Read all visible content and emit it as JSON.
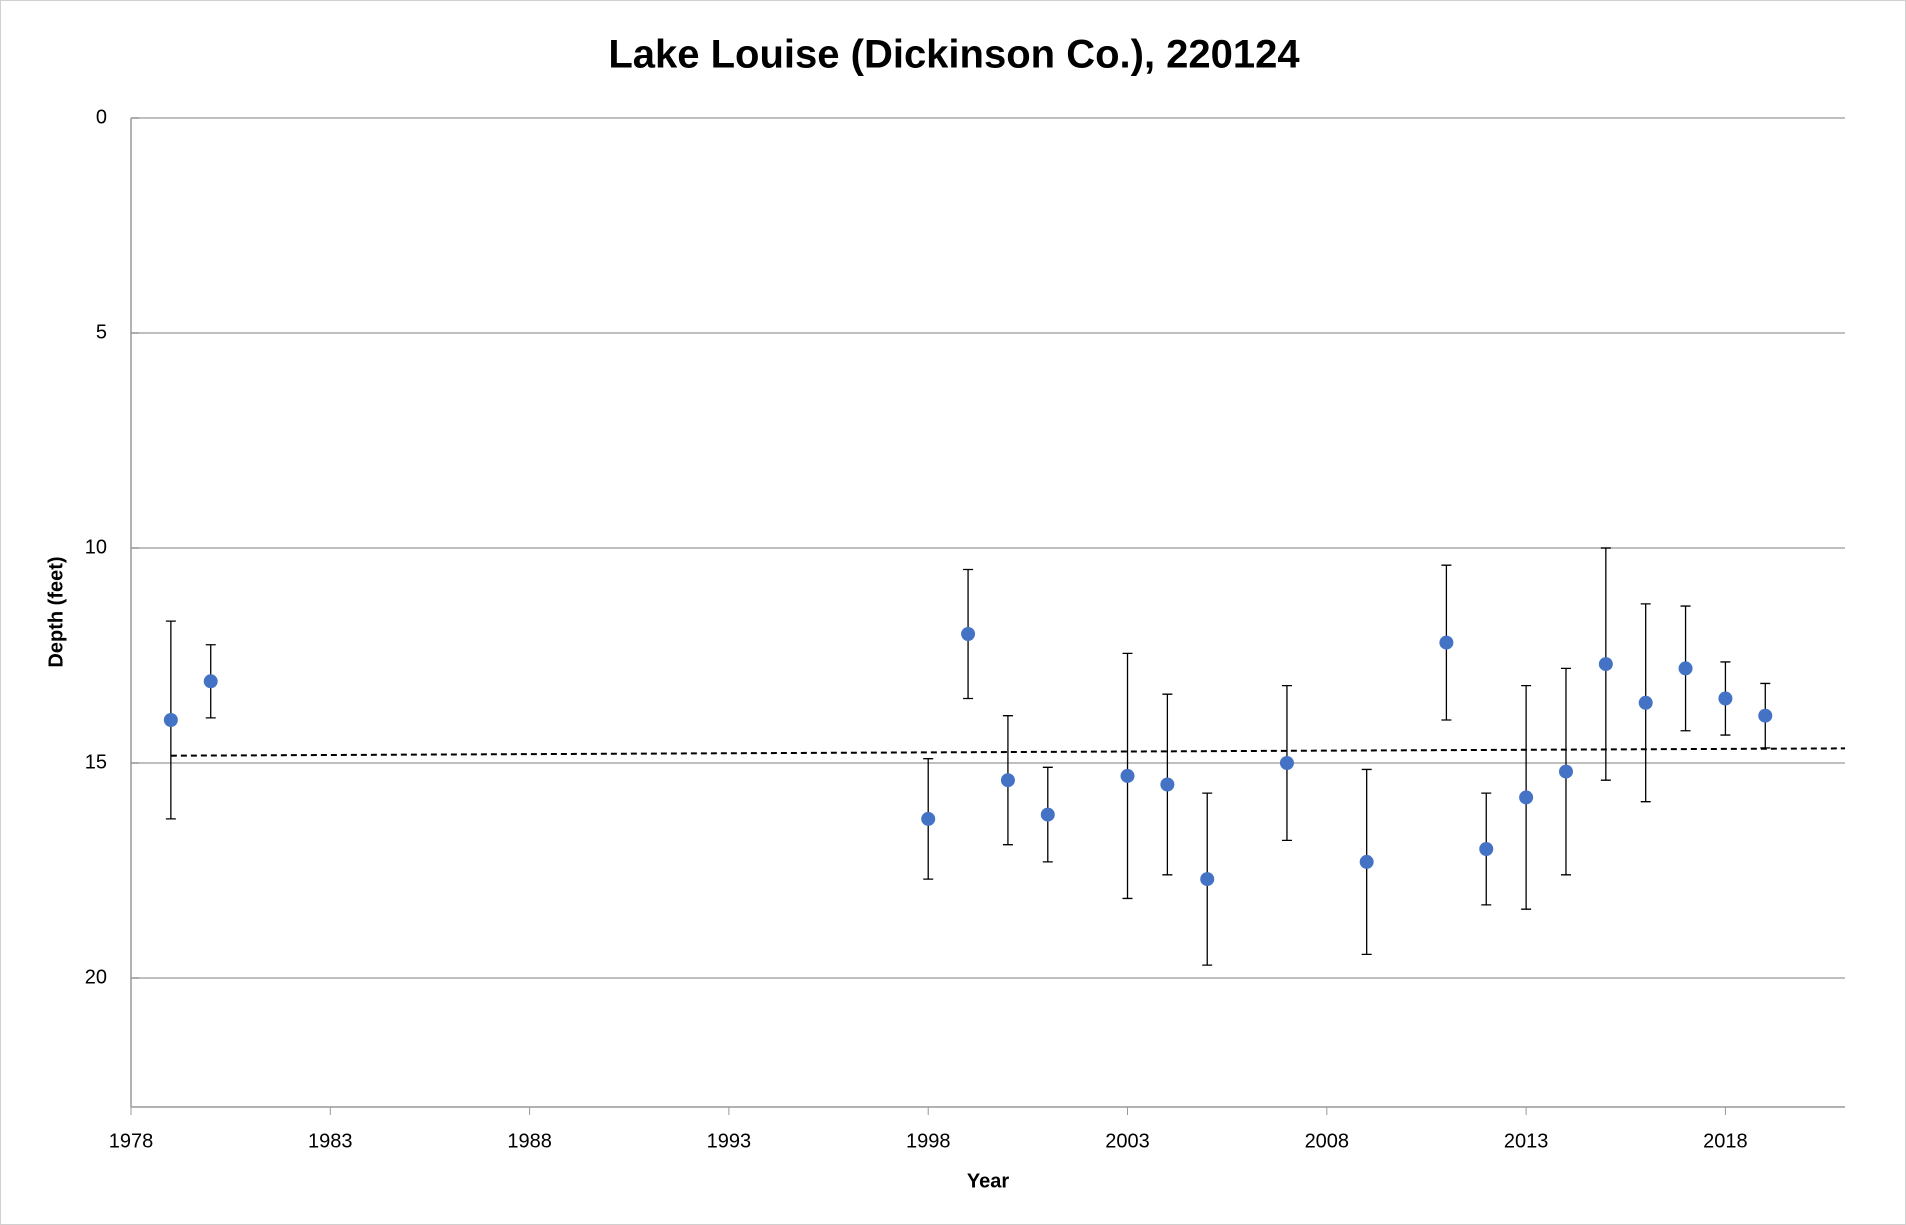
{
  "chart_data": {
    "type": "scatter",
    "title": "Lake Louise (Dickinson Co.), 220124",
    "x_label": "Year",
    "y_label": "Depth (feet)",
    "x": [
      1979,
      1980,
      1998,
      1999,
      2000,
      2001,
      2003,
      2004,
      2005,
      2007,
      2009,
      2011,
      2012,
      2013,
      2014,
      2015,
      2016,
      2017,
      2018,
      2019
    ],
    "values": [
      14.0,
      13.1,
      16.3,
      12.0,
      15.4,
      16.2,
      15.3,
      15.5,
      17.7,
      15.0,
      17.3,
      12.2,
      17.0,
      15.8,
      15.2,
      12.7,
      13.6,
      12.8,
      13.5,
      13.9
    ],
    "errors": [
      2.3,
      0.85,
      1.4,
      1.5,
      1.5,
      1.1,
      2.85,
      2.1,
      2.0,
      1.8,
      2.15,
      1.8,
      1.3,
      2.6,
      2.4,
      2.7,
      2.3,
      1.45,
      0.85,
      0.75
    ],
    "color": "#4472c4",
    "trendline": {
      "x": [
        1979,
        2021
      ],
      "values": [
        14.83,
        14.66
      ]
    },
    "xlim": [
      1978,
      2021
    ],
    "xticks": [
      1978,
      1983,
      1988,
      1993,
      1998,
      2003,
      2008,
      2013,
      2018
    ],
    "ylim": [
      0,
      23
    ],
    "yticks": [
      0,
      5,
      10,
      15,
      20
    ],
    "y_inverted": true,
    "grid": true
  }
}
